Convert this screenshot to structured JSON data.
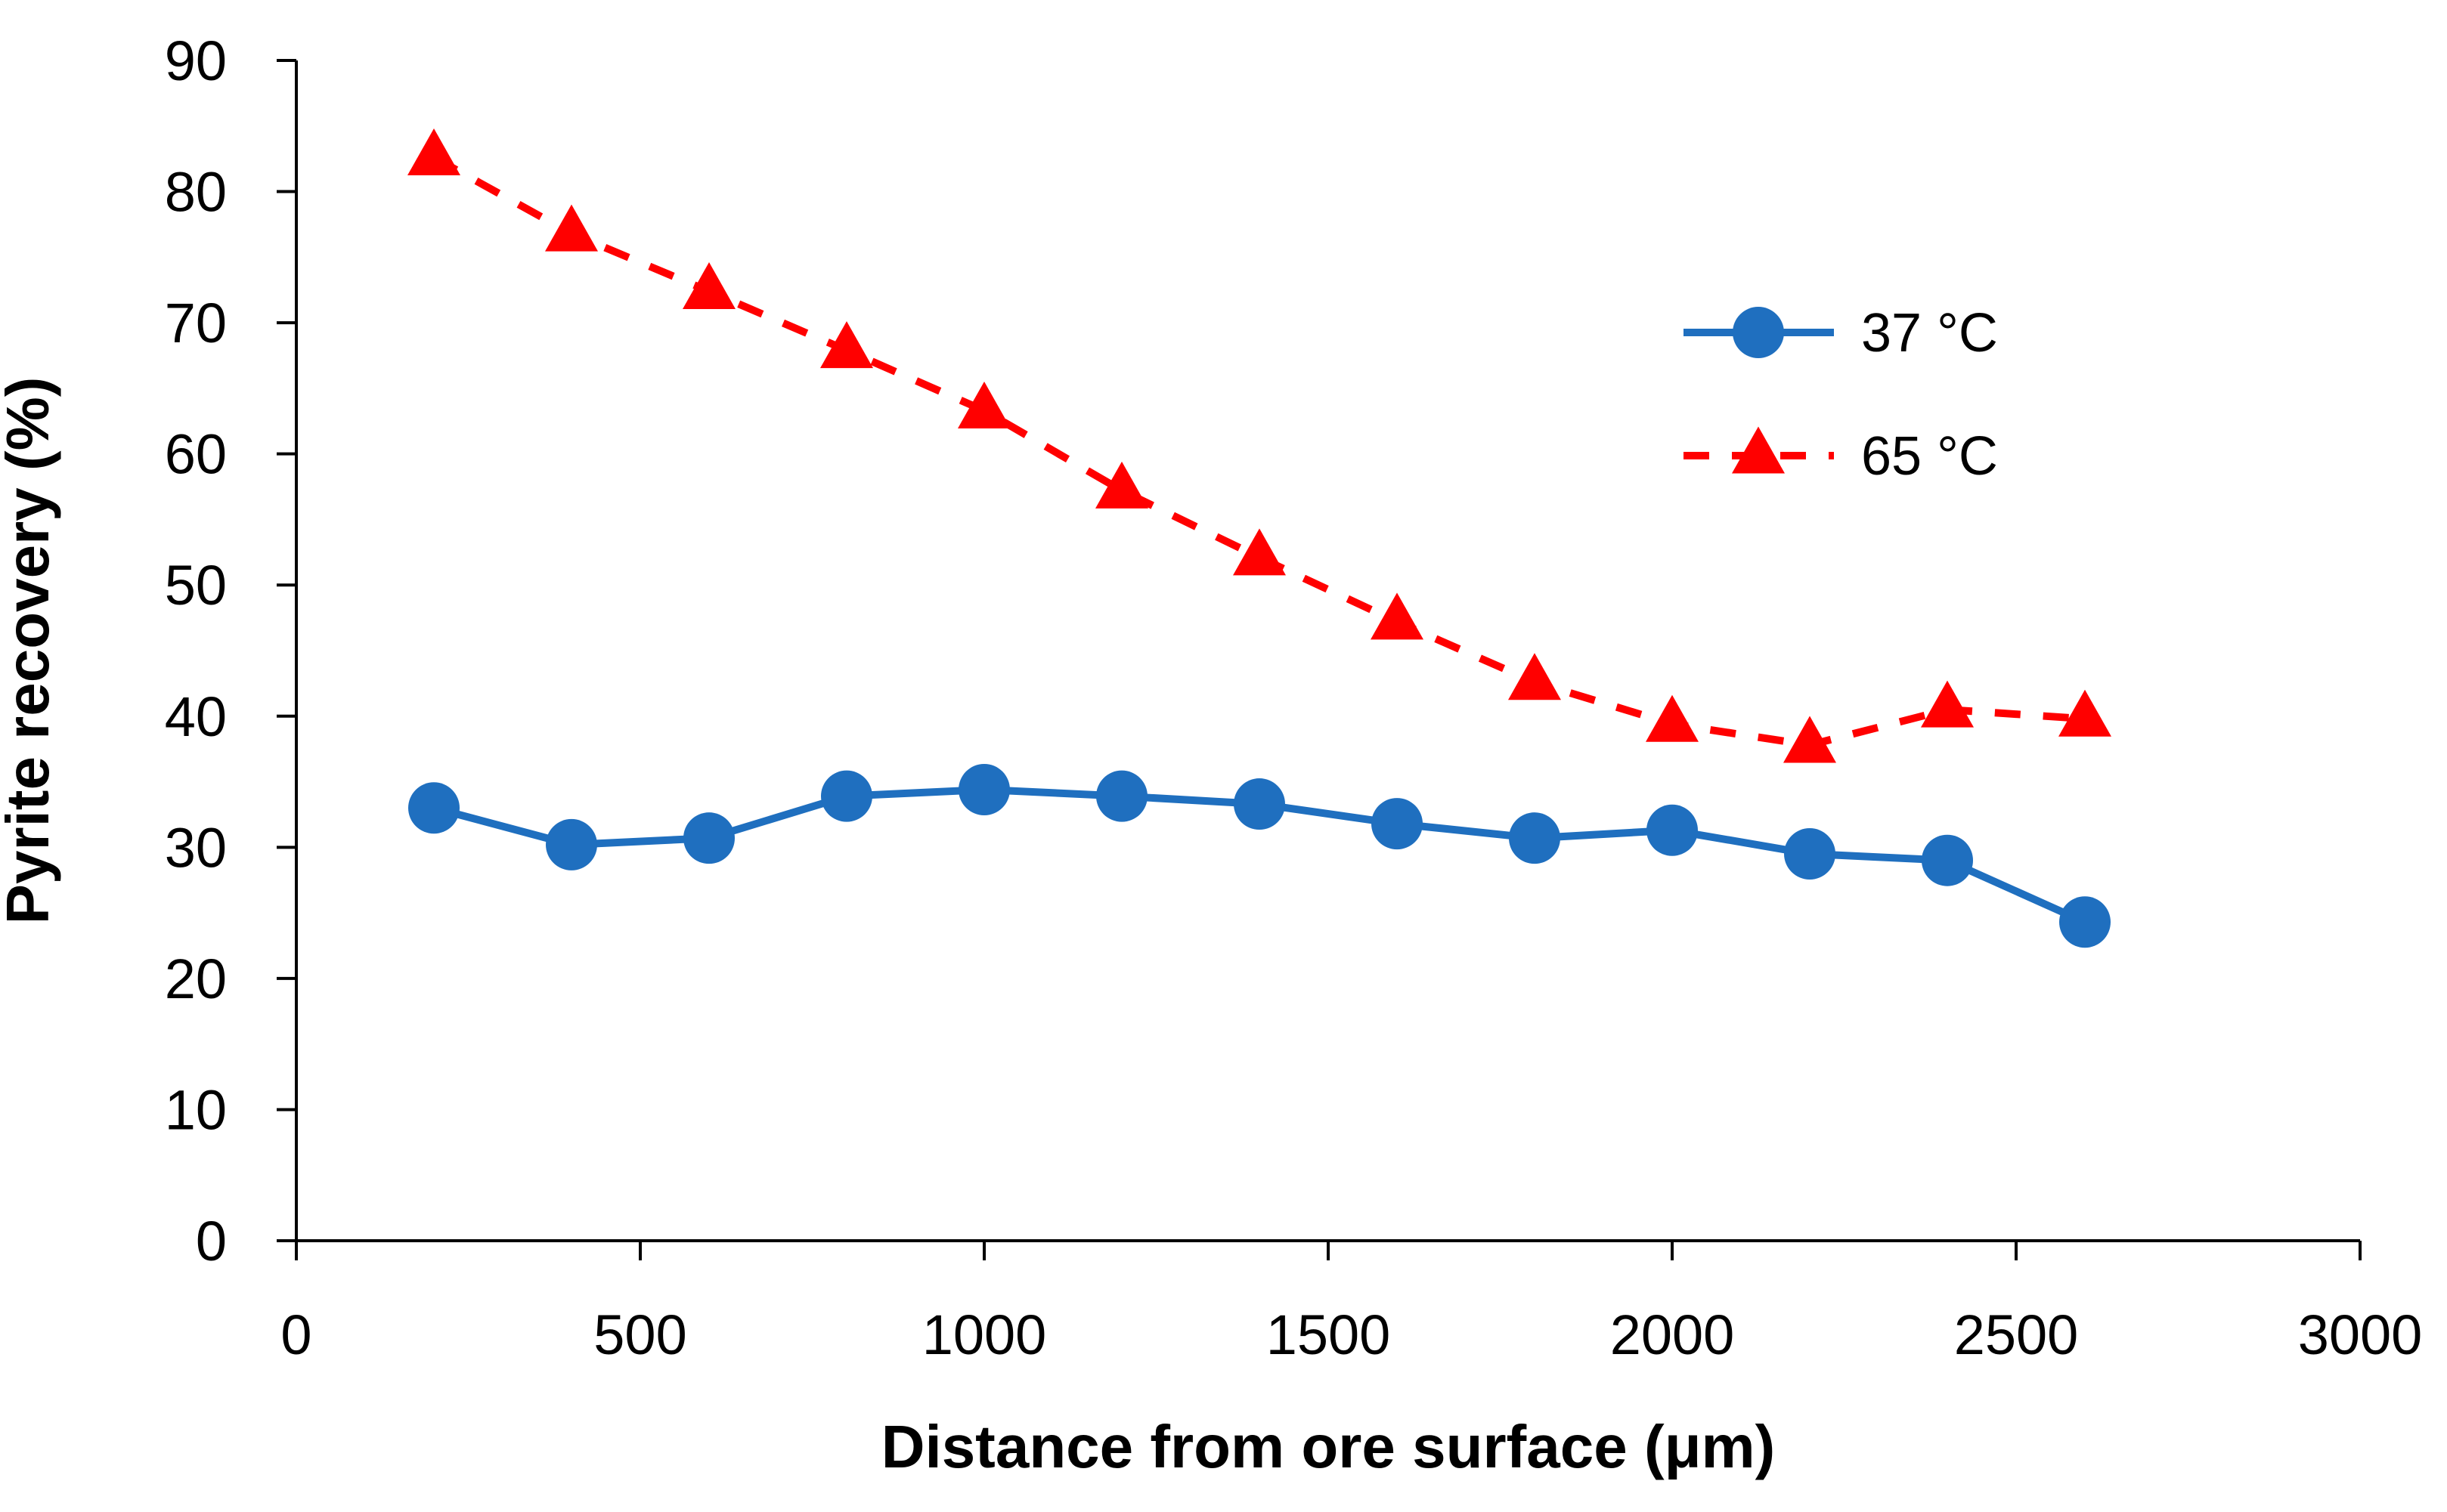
{
  "chart_data": {
    "type": "line",
    "title": "",
    "xlabel": "Distance from ore surface (μm)",
    "ylabel": "Pyrite recovery (%)",
    "xlim": [
      0,
      3000
    ],
    "ylim": [
      0,
      90
    ],
    "xticks": [
      0,
      500,
      1000,
      1500,
      2000,
      2500,
      3000
    ],
    "yticks": [
      0,
      10,
      20,
      30,
      40,
      50,
      60,
      70,
      80,
      90
    ],
    "grid": false,
    "legend_position": "top-right",
    "x": [
      200,
      400,
      600,
      800,
      1000,
      1200,
      1400,
      1600,
      1800,
      2000,
      2200,
      2400,
      2600
    ],
    "series": [
      {
        "name": "37 °C",
        "color": "#1f6fbf",
        "marker": "circle",
        "line": "solid",
        "values": [
          33.0,
          30.2,
          30.7,
          33.9,
          34.4,
          33.9,
          33.3,
          31.8,
          30.7,
          31.3,
          29.5,
          29.0,
          24.3
        ]
      },
      {
        "name": "65 °C",
        "color": "#ff0000",
        "marker": "triangle",
        "line": "dashed",
        "values": [
          82.6,
          76.8,
          72.4,
          67.9,
          63.3,
          57.2,
          52.1,
          47.2,
          42.6,
          39.4,
          37.8,
          40.5,
          39.8
        ]
      }
    ]
  }
}
